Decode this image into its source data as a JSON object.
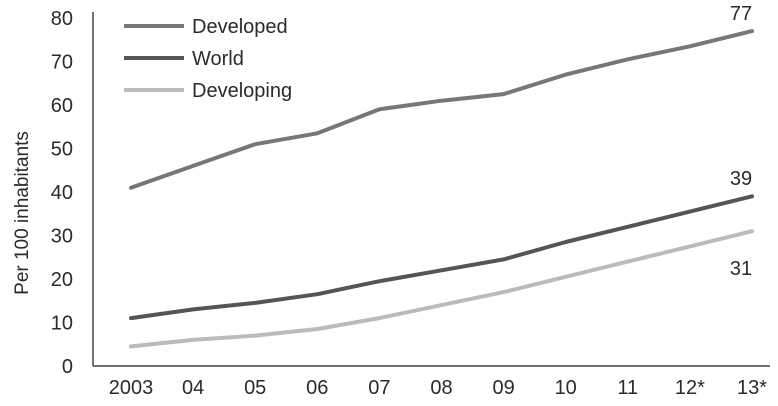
{
  "chart_data": {
    "type": "line",
    "title": "",
    "xlabel": "",
    "ylabel": "Per 100 inhabitants",
    "x": [
      "2003",
      "04",
      "05",
      "06",
      "07",
      "08",
      "09",
      "10",
      "11",
      "12*",
      "13*"
    ],
    "ylim": [
      0,
      80
    ],
    "yticks": [
      0,
      10,
      20,
      30,
      40,
      50,
      60,
      70,
      80
    ],
    "grid": false,
    "legend_position": "top-left",
    "series": [
      {
        "name": "Developed",
        "color": "#777777",
        "values": [
          41,
          46,
          51,
          53.5,
          59,
          61,
          62.5,
          67,
          70.5,
          73.5,
          77
        ],
        "end_label": "77"
      },
      {
        "name": "World",
        "color": "#555555",
        "values": [
          11,
          13,
          14.5,
          16.5,
          19.5,
          22,
          24.5,
          28.5,
          32,
          35.5,
          39
        ],
        "end_label": "39"
      },
      {
        "name": "Developing",
        "color": "#bbbbbb",
        "values": [
          4.5,
          6,
          7,
          8.5,
          11,
          14,
          17,
          20.5,
          24,
          27.5,
          31
        ],
        "end_label": "31"
      }
    ]
  }
}
